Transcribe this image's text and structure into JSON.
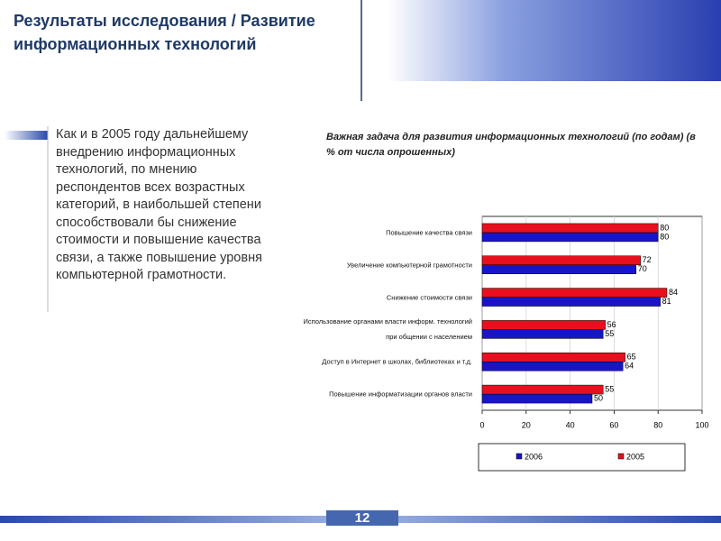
{
  "header": {
    "title_line1": "Результаты исследования /  Развитие",
    "title_line2": "информационных технологий"
  },
  "body_text": "Как и в 2005 году дальнейшему внедрению информационных технологий, по мнению респондентов всех возрастных категорий, в наибольшей степени способствовали бы снижение стоимости и повышение качества связи, а также повышение уровня компьютерной грамотности.",
  "page_number": "12",
  "chart_data": {
    "type": "hbar",
    "title": "Важная задача для развития информационных технологий (по годам) (в % от числа опрошенных)",
    "categories": [
      "Повышение качества связи",
      "Увеличение компьютерной грамотности",
      "Снижение стоимости связи",
      "Использование органами власти информ. технологий\nпри общении с населением",
      "Доступ в Интернет в школах, библиотеках и т.д.",
      "Повышение информатизации органов власти"
    ],
    "series": [
      {
        "name": "2006",
        "color": "#1a14c8",
        "values": [
          80,
          70,
          81,
          55,
          64,
          50
        ]
      },
      {
        "name": "2005",
        "color": "#e8101e",
        "values": [
          80,
          72,
          84,
          56,
          65,
          55
        ]
      }
    ],
    "xlim": [
      0,
      100
    ],
    "xticks": [
      0,
      20,
      40,
      60,
      80,
      100
    ],
    "grid": true,
    "legend": "bottom"
  }
}
